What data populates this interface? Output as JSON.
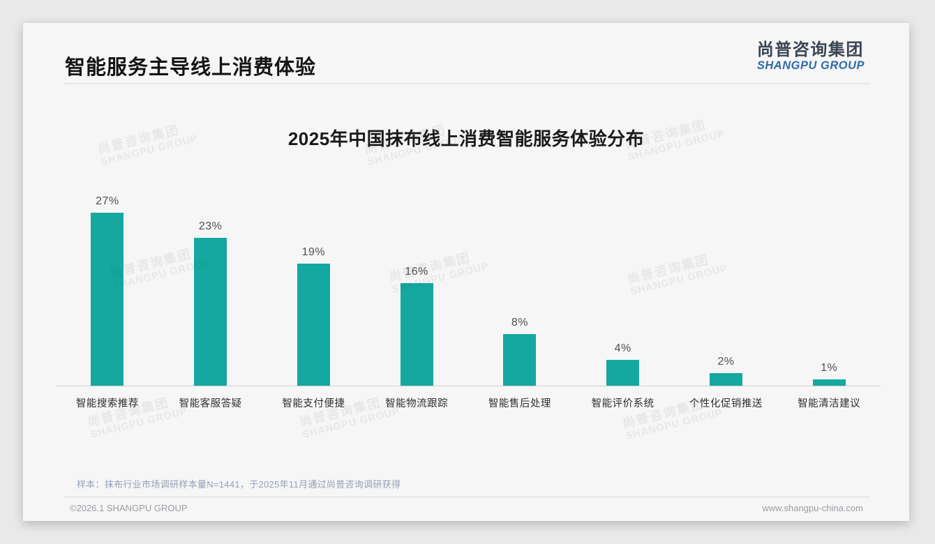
{
  "page": {
    "title": "智能服务主导线上消费体验",
    "logo": {
      "cn": "尚普咨询集团",
      "en": "SHANGPU GROUP"
    },
    "watermark": {
      "cn": "尚普咨询集团",
      "en": "SHANGPU GROUP"
    },
    "footnote": "样本：抹布行业市场调研样本量N=1441，于2025年11月通过尚普咨询调研获得",
    "footer": {
      "left": "©2026.1 SHANGPU GROUP",
      "right": "www.shangpu-china.com"
    }
  },
  "chart_data": {
    "type": "bar",
    "title": "2025年中国抹布线上消费智能服务体验分布",
    "categories": [
      "智能搜索推荐",
      "智能客服答疑",
      "智能支付便捷",
      "智能物流跟踪",
      "智能售后处理",
      "智能评价系统",
      "个性化促销推送",
      "智能清洁建议"
    ],
    "values": [
      27,
      23,
      19,
      16,
      8,
      4,
      2,
      1
    ],
    "value_labels": [
      "27%",
      "23%",
      "19%",
      "16%",
      "8%",
      "4%",
      "2%",
      "1%"
    ],
    "bar_color": "#14a8a1",
    "ylim": [
      0,
      30
    ],
    "xlabel": "",
    "ylabel": "",
    "grid": false,
    "legend": false
  }
}
